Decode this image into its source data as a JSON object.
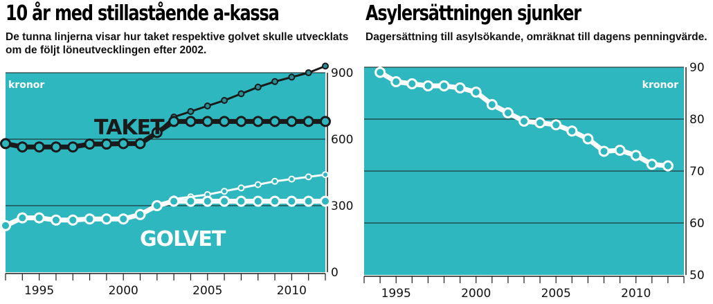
{
  "chart_data": [
    {
      "type": "line",
      "title": "10 år med stillastående a-kassa",
      "subtitle": "De tunna linjerna visar hur taket respektive golvet skulle utvecklats om de följt löneutvecklingen efter 2002.",
      "unit_label": "kronor",
      "x_tick_labels": [
        "1995",
        "2000",
        "2005",
        "2010"
      ],
      "y_tick_labels": [
        "900",
        "600",
        "300",
        "0"
      ],
      "xlim": [
        1993,
        2012
      ],
      "ylim": [
        0,
        900
      ],
      "grid": true,
      "series": [
        {
          "name": "TAKET",
          "style": "thick",
          "color": "#1a1a1a",
          "x": [
            1993,
            1994,
            1995,
            1996,
            1997,
            1998,
            1999,
            2000,
            2001,
            2002,
            2003,
            2004,
            2005,
            2006,
            2007,
            2008,
            2009,
            2010,
            2011,
            2012
          ],
          "values": [
            580,
            565,
            565,
            565,
            565,
            578,
            578,
            580,
            580,
            630,
            680,
            680,
            680,
            680,
            680,
            680,
            680,
            680,
            680,
            680
          ]
        },
        {
          "name": "",
          "style": "thin",
          "color": "#1a1a1a",
          "x": [
            2002,
            2003,
            2004,
            2005,
            2006,
            2007,
            2008,
            2009,
            2010,
            2011,
            2012
          ],
          "values": [
            630,
            700,
            725,
            750,
            775,
            805,
            835,
            860,
            880,
            900,
            930
          ]
        },
        {
          "name": "GOLVET",
          "style": "thick",
          "color": "#ffffff",
          "x": [
            1993,
            1994,
            1995,
            1996,
            1997,
            1998,
            1999,
            2000,
            2001,
            2002,
            2003,
            2004,
            2005,
            2006,
            2007,
            2008,
            2009,
            2010,
            2011,
            2012
          ],
          "values": [
            210,
            245,
            245,
            235,
            235,
            240,
            240,
            240,
            260,
            300,
            320,
            320,
            320,
            320,
            320,
            320,
            320,
            320,
            320,
            320
          ]
        },
        {
          "name": "",
          "style": "thin",
          "color": "#ffffff",
          "x": [
            2002,
            2003,
            2004,
            2005,
            2006,
            2007,
            2008,
            2009,
            2010,
            2011,
            2012
          ],
          "values": [
            300,
            330,
            340,
            350,
            365,
            380,
            395,
            410,
            420,
            430,
            440
          ]
        }
      ]
    },
    {
      "type": "line",
      "title": "Asylersättningen sjunker",
      "subtitle": "Dagersättning till asylsökande, omräknat till dagens penningvärde.",
      "unit_label": "kronor",
      "x_tick_labels": [
        "1995",
        "2000",
        "2005",
        "2010"
      ],
      "y_tick_labels": [
        "90",
        "80",
        "70",
        "60",
        "50"
      ],
      "xlim": [
        1993,
        2013
      ],
      "ylim": [
        50,
        90
      ],
      "grid": true,
      "series": [
        {
          "name": "",
          "style": "thick",
          "color": "#ffffff",
          "x": [
            1994,
            1995,
            1996,
            1997,
            1998,
            1999,
            2000,
            2001,
            2002,
            2003,
            2004,
            2005,
            2006,
            2007,
            2008,
            2009,
            2010,
            2011,
            2012
          ],
          "values": [
            89,
            87.2,
            86.8,
            86.4,
            86.4,
            86,
            85.2,
            82.8,
            81.2,
            79.6,
            79.3,
            78.9,
            77.7,
            76.2,
            73.8,
            74,
            73,
            71.3,
            71
          ]
        }
      ]
    }
  ]
}
